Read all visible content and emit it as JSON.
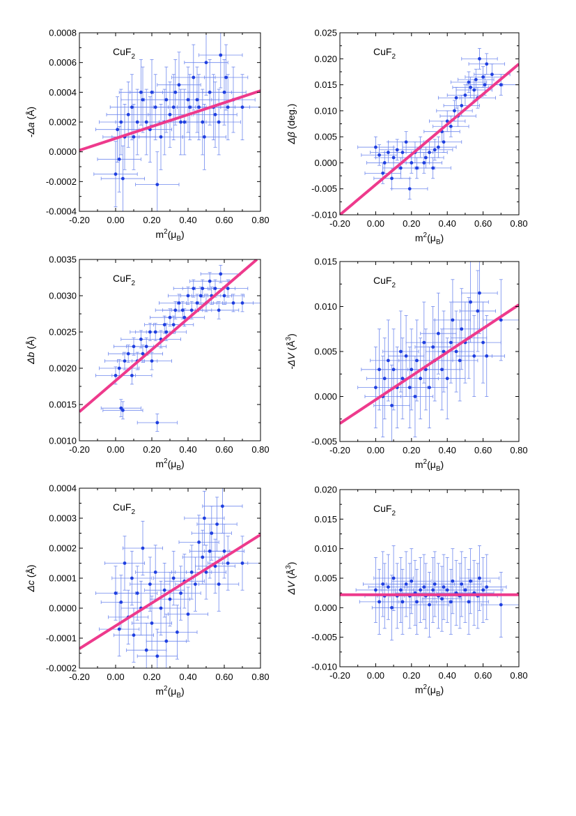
{
  "figure": {
    "colors": {
      "points": "#1f3fe0",
      "errorbars": "#6f88ee",
      "fit": "#ee3a8c",
      "axis": "#000000"
    }
  },
  "chart_data": [
    {
      "type": "scatter",
      "label": {
        "main": "CuF",
        "sub": "2"
      },
      "ylabel": {
        "italic": "-Δa",
        "unit": " (Å)",
        "sup": ""
      },
      "xlabel": {
        "main": "m",
        "sup": "2",
        "mid": "(μ",
        "sub": "B",
        "end": ")"
      },
      "xlim": [
        -0.2,
        0.8
      ],
      "ylim": [
        -0.0004,
        0.0008
      ],
      "xticks": [
        "-0.20",
        "0.00",
        "0.20",
        "0.40",
        "0.60",
        "0.80"
      ],
      "yticks": [
        "-0.0004",
        "-0.0002",
        "0.0000",
        "0.0002",
        "0.0004",
        "0.0006",
        "0.0008"
      ],
      "fit": {
        "x": [
          -0.2,
          0.8
        ],
        "y": [
          1e-05,
          0.00041
        ]
      },
      "points": {
        "x": [
          0.0,
          0.01,
          0.02,
          0.03,
          0.04,
          0.05,
          0.07,
          0.09,
          0.1,
          0.12,
          0.14,
          0.15,
          0.17,
          0.19,
          0.2,
          0.22,
          0.23,
          0.25,
          0.27,
          0.28,
          0.3,
          0.32,
          0.33,
          0.35,
          0.36,
          0.38,
          0.4,
          0.41,
          0.43,
          0.45,
          0.46,
          0.48,
          0.49,
          0.5,
          0.52,
          0.54,
          0.55,
          0.57,
          0.58,
          0.6,
          0.61,
          0.62,
          0.65,
          0.7
        ],
        "y": [
          -0.00015,
          0.00015,
          -5e-05,
          0.0002,
          -0.00018,
          0.0001,
          0.00025,
          0.0003,
          0.0001,
          0.0002,
          0.0004,
          0.00035,
          0.0002,
          0.00015,
          0.0004,
          0.0003,
          -0.00022,
          0.0001,
          0.0002,
          0.00035,
          0.00025,
          0.0003,
          0.0004,
          0.00045,
          0.0002,
          0.0002,
          0.00035,
          0.0003,
          0.0005,
          0.00035,
          0.0003,
          0.0002,
          0.0001,
          0.0006,
          0.0004,
          0.0003,
          0.00025,
          0.0002,
          0.00065,
          0.0004,
          0.0005,
          0.0003,
          0.00035,
          0.0003
        ],
        "xerr": 0.12,
        "yerr": 0.00022
      }
    },
    {
      "type": "scatter",
      "label": {
        "main": "CuF",
        "sub": "2"
      },
      "ylabel": {
        "italic": "Δβ",
        "unit": " (deg.)",
        "sup": ""
      },
      "xlabel": {
        "main": "m",
        "sup": "2",
        "mid": "(μ",
        "sub": "B",
        "end": ")"
      },
      "xlim": [
        -0.2,
        0.8
      ],
      "ylim": [
        -0.01,
        0.025
      ],
      "xticks": [
        "-0.20",
        "0.00",
        "0.20",
        "0.40",
        "0.60",
        "0.80"
      ],
      "yticks": [
        "-0.010",
        "-0.005",
        "0.000",
        "0.005",
        "0.010",
        "0.015",
        "0.020",
        "0.025"
      ],
      "fit": {
        "x": [
          -0.2,
          0.8
        ],
        "y": [
          -0.01,
          0.019
        ]
      },
      "points": {
        "x": [
          0.0,
          0.02,
          0.04,
          0.05,
          0.07,
          0.09,
          0.1,
          0.12,
          0.14,
          0.15,
          0.17,
          0.19,
          0.2,
          0.22,
          0.23,
          0.25,
          0.27,
          0.28,
          0.3,
          0.32,
          0.33,
          0.35,
          0.37,
          0.38,
          0.4,
          0.42,
          0.44,
          0.45,
          0.46,
          0.48,
          0.5,
          0.52,
          0.53,
          0.55,
          0.56,
          0.57,
          0.58,
          0.6,
          0.61,
          0.62,
          0.65,
          0.7
        ],
        "y": [
          0.003,
          0.0015,
          -0.002,
          0.0,
          0.002,
          -0.003,
          0.001,
          0.0025,
          -0.001,
          0.002,
          0.004,
          -0.005,
          0.0,
          0.002,
          -0.001,
          0.003,
          0.0,
          0.001,
          0.002,
          -0.001,
          0.0025,
          0.003,
          0.006,
          0.004,
          0.008,
          0.007,
          0.01,
          0.0125,
          0.009,
          0.011,
          0.013,
          0.0155,
          0.0145,
          0.014,
          0.016,
          0.0125,
          0.02,
          0.0165,
          0.015,
          0.019,
          0.017,
          0.015
        ],
        "xerr": 0.1,
        "yerr": 0.002
      }
    },
    {
      "type": "scatter",
      "label": {
        "main": "CuF",
        "sub": "2"
      },
      "ylabel": {
        "italic": "Δb",
        "unit": " (Å)",
        "sup": ""
      },
      "xlabel": {
        "main": "m",
        "sup": "2",
        "mid": "(μ",
        "sub": "B",
        "end": ")"
      },
      "xlim": [
        -0.2,
        0.8
      ],
      "ylim": [
        0.001,
        0.0035
      ],
      "xticks": [
        "-0.20",
        "0.00",
        "0.20",
        "0.40",
        "0.60",
        "0.80"
      ],
      "yticks": [
        "0.0010",
        "0.0015",
        "0.0020",
        "0.0025",
        "0.0030",
        "0.0035"
      ],
      "fit": {
        "x": [
          -0.2,
          0.78
        ],
        "y": [
          0.0014,
          0.0035
        ]
      },
      "points": {
        "x": [
          0.0,
          0.02,
          0.03,
          0.04,
          0.05,
          0.07,
          0.09,
          0.1,
          0.12,
          0.14,
          0.15,
          0.17,
          0.19,
          0.2,
          0.22,
          0.23,
          0.25,
          0.27,
          0.28,
          0.3,
          0.32,
          0.33,
          0.35,
          0.37,
          0.38,
          0.4,
          0.42,
          0.43,
          0.45,
          0.47,
          0.48,
          0.5,
          0.52,
          0.53,
          0.55,
          0.57,
          0.58,
          0.6,
          0.62,
          0.65,
          0.7
        ],
        "y": [
          0.0019,
          0.002,
          0.00145,
          0.00142,
          0.0021,
          0.0022,
          0.0019,
          0.0023,
          0.0021,
          0.0024,
          0.0022,
          0.0023,
          0.0025,
          0.0021,
          0.0025,
          0.00125,
          0.0024,
          0.0026,
          0.0025,
          0.0027,
          0.0026,
          0.0028,
          0.0029,
          0.0028,
          0.0027,
          0.003,
          0.0028,
          0.0031,
          0.0029,
          0.003,
          0.0031,
          0.0029,
          0.0032,
          0.003,
          0.0031,
          0.0028,
          0.0033,
          0.003,
          0.0031,
          0.0029,
          0.0029
        ],
        "xerr": 0.11,
        "yerr": 0.00012
      }
    },
    {
      "type": "scatter",
      "label": {
        "main": "CuF",
        "sub": "2"
      },
      "ylabel": {
        "italic": "-ΔV",
        "unit": " (Å",
        "sup": "3",
        "end": ")"
      },
      "xlabel": {
        "main": "m",
        "sup": "2",
        "mid": "(μ",
        "sub": "B",
        "end": ")"
      },
      "xlim": [
        -0.2,
        0.8
      ],
      "ylim": [
        -0.005,
        0.015
      ],
      "xticks": [
        "-0.20",
        "0.00",
        "0.20",
        "0.40",
        "0.60",
        "0.80"
      ],
      "yticks": [
        "-0.005",
        "0.000",
        "0.005",
        "0.010",
        "0.015"
      ],
      "fit": {
        "x": [
          -0.2,
          0.8
        ],
        "y": [
          -0.003,
          0.0102
        ]
      },
      "points": {
        "x": [
          0.0,
          0.02,
          0.04,
          0.05,
          0.07,
          0.09,
          0.1,
          0.12,
          0.14,
          0.15,
          0.17,
          0.19,
          0.2,
          0.22,
          0.23,
          0.25,
          0.27,
          0.28,
          0.3,
          0.32,
          0.33,
          0.35,
          0.37,
          0.38,
          0.4,
          0.42,
          0.43,
          0.45,
          0.47,
          0.48,
          0.5,
          0.52,
          0.53,
          0.55,
          0.57,
          0.58,
          0.6,
          0.62,
          0.7
        ],
        "y": [
          0.001,
          0.003,
          0.0,
          0.002,
          0.004,
          -0.001,
          0.003,
          0.001,
          0.005,
          0.002,
          0.0045,
          0.001,
          0.003,
          0.0,
          0.004,
          0.002,
          0.006,
          0.003,
          0.001,
          0.0055,
          0.004,
          0.007,
          0.003,
          0.005,
          0.002,
          0.006,
          0.0085,
          0.005,
          0.004,
          0.0075,
          0.006,
          0.0065,
          0.0105,
          0.0045,
          0.0095,
          0.0115,
          0.006,
          0.0045,
          0.0085
        ],
        "xerr": 0.1,
        "yerr": 0.0045
      }
    },
    {
      "type": "scatter",
      "label": {
        "main": "CuF",
        "sub": "2"
      },
      "ylabel": {
        "italic": "Δc",
        "unit": " (Å)",
        "sup": ""
      },
      "xlabel": {
        "main": "m",
        "sup": "2",
        "mid": "(μ",
        "sub": "B",
        "end": ")"
      },
      "xlim": [
        -0.2,
        0.8
      ],
      "ylim": [
        -0.0002,
        0.0004
      ],
      "xticks": [
        "-0.20",
        "0.00",
        "0.20",
        "0.40",
        "0.60",
        "0.80"
      ],
      "yticks": [
        "-0.0002",
        "-0.0001",
        "0.0000",
        "0.0001",
        "0.0002",
        "0.0003",
        "0.0004"
      ],
      "fit": {
        "x": [
          -0.2,
          0.8
        ],
        "y": [
          -0.000135,
          0.000245
        ]
      },
      "points": {
        "x": [
          0.0,
          0.02,
          0.03,
          0.05,
          0.07,
          0.09,
          0.1,
          0.12,
          0.14,
          0.15,
          0.17,
          0.19,
          0.2,
          0.22,
          0.23,
          0.25,
          0.27,
          0.28,
          0.3,
          0.32,
          0.34,
          0.36,
          0.38,
          0.4,
          0.42,
          0.44,
          0.46,
          0.48,
          0.49,
          0.5,
          0.52,
          0.53,
          0.55,
          0.56,
          0.57,
          0.59,
          0.6,
          0.62,
          0.7
        ],
        "y": [
          5e-05,
          -7e-05,
          2e-05,
          0.00015,
          -3e-05,
          0.0001,
          -9e-05,
          5e-05,
          0.0,
          0.0002,
          -0.00014,
          8e-05,
          -5e-05,
          0.00012,
          -0.00016,
          0.0,
          6e-05,
          -0.00011,
          3e-05,
          0.0001,
          -8e-05,
          5e-05,
          9e-05,
          -2e-05,
          0.00012,
          8e-05,
          0.00022,
          0.00017,
          0.0003,
          0.00012,
          0.00019,
          0.00025,
          0.00014,
          0.00028,
          8e-05,
          0.00034,
          0.00019,
          0.00015,
          0.00015
        ],
        "xerr": 0.11,
        "yerr": 9e-05
      }
    },
    {
      "type": "scatter",
      "label": {
        "main": "CuF",
        "sub": "2"
      },
      "ylabel": {
        "italic": "ΔV",
        "unit": " (Å",
        "sup": "3",
        "end": ")"
      },
      "xlabel": {
        "main": "m",
        "sup": "2",
        "mid": "(μ",
        "sub": "B",
        "end": ")"
      },
      "xlim": [
        -0.2,
        0.8
      ],
      "ylim": [
        -0.01,
        0.02
      ],
      "xticks": [
        "-0.20",
        "0.00",
        "0.20",
        "0.40",
        "0.60",
        "0.80"
      ],
      "yticks": [
        "-0.010",
        "-0.005",
        "0.000",
        "0.005",
        "0.010",
        "0.015",
        "0.020"
      ],
      "fit": {
        "x": [
          -0.2,
          0.8
        ],
        "y": [
          0.0022,
          0.0022
        ]
      },
      "points": {
        "x": [
          0.0,
          0.02,
          0.04,
          0.05,
          0.07,
          0.09,
          0.1,
          0.12,
          0.14,
          0.15,
          0.17,
          0.19,
          0.2,
          0.22,
          0.23,
          0.25,
          0.27,
          0.28,
          0.3,
          0.32,
          0.33,
          0.35,
          0.37,
          0.38,
          0.4,
          0.42,
          0.43,
          0.45,
          0.47,
          0.48,
          0.5,
          0.52,
          0.53,
          0.55,
          0.57,
          0.58,
          0.6,
          0.62,
          0.7
        ],
        "y": [
          0.003,
          0.001,
          0.004,
          0.002,
          0.0035,
          0.0,
          0.005,
          0.002,
          0.003,
          0.001,
          0.004,
          0.002,
          0.0045,
          0.0025,
          0.001,
          0.003,
          0.0035,
          0.002,
          0.0005,
          0.003,
          0.004,
          0.002,
          0.0015,
          0.0035,
          0.003,
          0.001,
          0.0045,
          0.0025,
          0.002,
          0.004,
          0.003,
          0.001,
          0.0045,
          0.0025,
          0.002,
          0.005,
          0.003,
          0.0035,
          0.0005
        ],
        "xerr": 0.11,
        "yerr": 0.0055
      }
    }
  ]
}
